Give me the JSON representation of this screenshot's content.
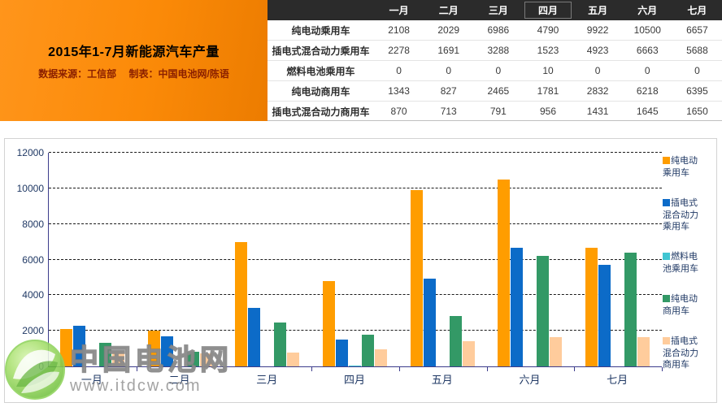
{
  "header": {
    "title": "2015年1-7月新能源汽车产量",
    "subtitle_source": "数据来源：工信部",
    "subtitle_author": "制表：中国电池网/陈语"
  },
  "table": {
    "months": [
      "一月",
      "二月",
      "三月",
      "四月",
      "五月",
      "六月",
      "七月"
    ],
    "selected_month": "四月",
    "rows": [
      {
        "label": "纯电动乘用车",
        "values": [
          2108,
          2029,
          6986,
          4790,
          9922,
          10500,
          6657
        ]
      },
      {
        "label": "插电式混合动力乘用车",
        "values": [
          2278,
          1691,
          3288,
          1523,
          4923,
          6663,
          5688
        ]
      },
      {
        "label": "燃料电池乘用车",
        "values": [
          0,
          0,
          0,
          10,
          0,
          0,
          0
        ]
      },
      {
        "label": "纯电动商用车",
        "values": [
          1343,
          827,
          2465,
          1781,
          2832,
          6218,
          6395
        ]
      },
      {
        "label": "插电式混合动力商用车",
        "values": [
          870,
          713,
          791,
          956,
          1431,
          1645,
          1650
        ]
      }
    ]
  },
  "chart_data": {
    "type": "bar",
    "title": "2015年1-7月新能源汽车产量",
    "categories": [
      "一月",
      "二月",
      "三月",
      "四月",
      "五月",
      "六月",
      "七月"
    ],
    "series": [
      {
        "name": "纯电动乘用车",
        "color": "#FF9D00",
        "values": [
          2108,
          2029,
          6986,
          4790,
          9922,
          10500,
          6657
        ]
      },
      {
        "name": "插电式混合动力乘用车",
        "color": "#0C6BC8",
        "values": [
          2278,
          1691,
          3288,
          1523,
          4923,
          6663,
          5688
        ]
      },
      {
        "name": "燃料电池乘用车",
        "color": "#41C5D2",
        "values": [
          0,
          0,
          0,
          10,
          0,
          0,
          0
        ]
      },
      {
        "name": "纯电动商用车",
        "color": "#339966",
        "values": [
          1343,
          827,
          2465,
          1781,
          2832,
          6218,
          6395
        ]
      },
      {
        "name": "插电式混合动力商用车",
        "color": "#FFCC9C",
        "values": [
          870,
          713,
          791,
          956,
          1431,
          1645,
          1650
        ]
      }
    ],
    "xlabel": "",
    "ylabel": "",
    "ylim": [
      0,
      12000
    ],
    "yticks": [
      0,
      2000,
      4000,
      6000,
      8000,
      10000,
      12000
    ],
    "grid": "dashed-horizontal",
    "legend_position": "right",
    "axis_color": "#3C3C8C",
    "tick_label_color": "#1F3864"
  },
  "watermark": {
    "site_name": "中国电池网",
    "site_url": "www.itdcw.com"
  }
}
